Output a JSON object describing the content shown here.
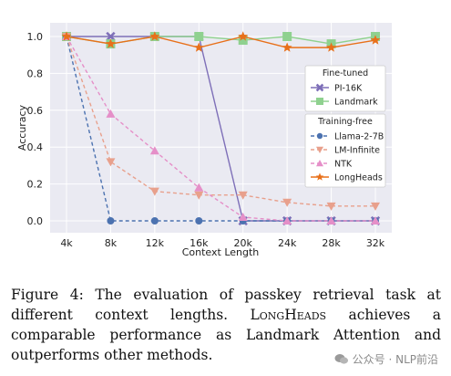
{
  "chart_data": {
    "type": "line",
    "categories": [
      "4k",
      "8k",
      "12k",
      "16k",
      "20k",
      "24k",
      "28k",
      "32k"
    ],
    "xlabel": "Context Length",
    "ylabel": "Accuracy",
    "ylim": [
      0,
      1.0
    ],
    "yticks": [
      "0.0",
      "0.2",
      "0.4",
      "0.6",
      "0.8",
      "1.0"
    ],
    "grid": true,
    "legend_position": "right",
    "legend_groups": [
      {
        "title": "Fine-tuned",
        "series": [
          "PI-16K",
          "Landmark"
        ]
      },
      {
        "title": "Training-free",
        "series": [
          "Llama-2-7B",
          "LM-Infinite",
          "NTK",
          "LongHeads"
        ]
      }
    ],
    "series": [
      {
        "name": "PI-16K",
        "values": [
          1.0,
          1.0,
          1.0,
          1.0,
          0.0,
          0.0,
          0.0,
          0.0
        ],
        "color": "#7e6fb8",
        "marker": "x",
        "dash": "solid"
      },
      {
        "name": "Landmark",
        "values": [
          1.0,
          0.96,
          1.0,
          1.0,
          0.98,
          1.0,
          0.96,
          1.0
        ],
        "color": "#8fd18f",
        "marker": "square",
        "dash": "solid"
      },
      {
        "name": "Llama-2-7B",
        "values": [
          1.0,
          0.0,
          0.0,
          0.0,
          0.0,
          0.0,
          0.0,
          0.0
        ],
        "color": "#4c72b0",
        "marker": "circle",
        "dash": "dashed"
      },
      {
        "name": "LM-Infinite",
        "values": [
          1.0,
          0.32,
          0.16,
          0.14,
          0.14,
          0.1,
          0.08,
          0.08
        ],
        "color": "#e8a08c",
        "marker": "triangle-down",
        "dash": "dashed"
      },
      {
        "name": "NTK",
        "values": [
          1.0,
          0.58,
          0.38,
          0.18,
          0.02,
          0.0,
          0.0,
          0.0
        ],
        "color": "#e58fc8",
        "marker": "triangle-up",
        "dash": "dashed"
      },
      {
        "name": "LongHeads",
        "values": [
          1.0,
          0.96,
          1.0,
          0.94,
          1.0,
          0.94,
          0.94,
          0.98
        ],
        "color": "#e8701a",
        "marker": "star",
        "dash": "solid"
      }
    ]
  },
  "caption": {
    "prefix": "Figure 4:  The evaluation of passkey retrieval task at different context lengths. ",
    "method": "LongHeads",
    "suffix": " achieves a comparable performance as Landmark Attention and outperforms other methods."
  },
  "watermark": {
    "text": "公众号 · NLP前沿"
  }
}
